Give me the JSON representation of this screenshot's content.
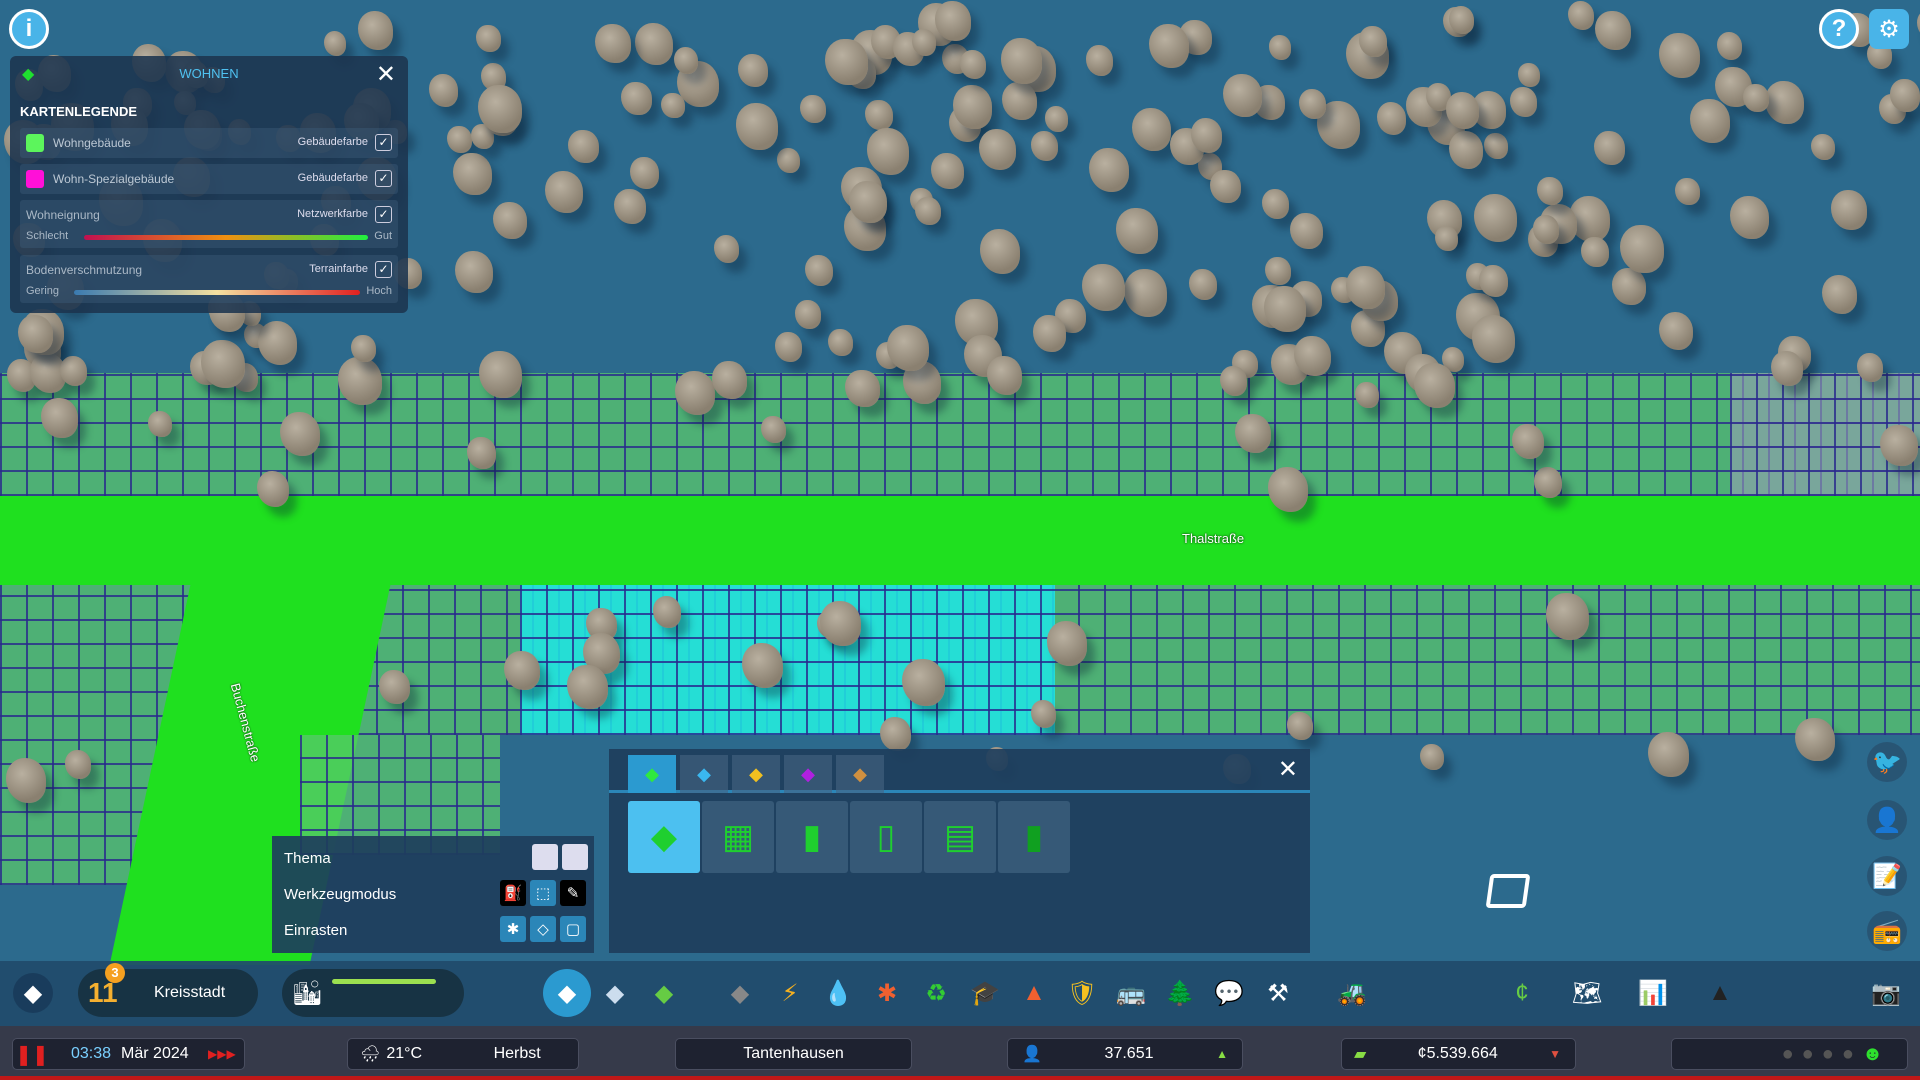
{
  "map": {
    "streets": [
      "Thalstraße",
      "Buchenstraße"
    ]
  },
  "top": {
    "info_icon": "info-icon",
    "help_icon": "help-icon",
    "settings_icon": "gear-icon"
  },
  "legend": {
    "title": "WOHNEN",
    "heading": "KARTENLEGENDE",
    "rows": [
      {
        "label": "Wohngebäude",
        "mode": "Gebäudefarbe",
        "color": "#5cf55c",
        "checked": true
      },
      {
        "label": "Wohn-Spezialgebäude",
        "mode": "Gebäudefarbe",
        "color": "#ff10d8",
        "checked": true
      }
    ],
    "gradients": [
      {
        "label": "Wohneignung",
        "mode": "Netzwerkfarbe",
        "low": "Schlecht",
        "high": "Gut",
        "checked": true
      },
      {
        "label": "Bodenverschmutzung",
        "mode": "Terrainfarbe",
        "low": "Gering",
        "high": "Hoch",
        "checked": true
      }
    ]
  },
  "zoning": {
    "tabs": [
      "residential",
      "commercial",
      "industrial",
      "office",
      "special"
    ],
    "selected_tab": 0,
    "tiles": [
      "low-density-residential",
      "row-housing",
      "medium-density",
      "mixed-housing",
      "medium-apartments",
      "high-density"
    ],
    "selected_tile": 0
  },
  "tool_options": {
    "rows": [
      {
        "label": "Thema"
      },
      {
        "label": "Werkzeugmodus"
      },
      {
        "label": "Einrasten"
      }
    ]
  },
  "toolbar": {
    "milestone_level": "11",
    "milestone_badge": "3",
    "milestone_name": "Kreisstadt"
  },
  "status": {
    "time": "03:38",
    "date": "Mär 2024",
    "temperature": "21°C",
    "season": "Herbst",
    "city": "Tantenhausen",
    "population": "37.651",
    "money": "¢5.539.664"
  },
  "colors": {
    "accent": "#49b4e8",
    "zone": "#5cf55c",
    "road": "#1fe01f"
  }
}
